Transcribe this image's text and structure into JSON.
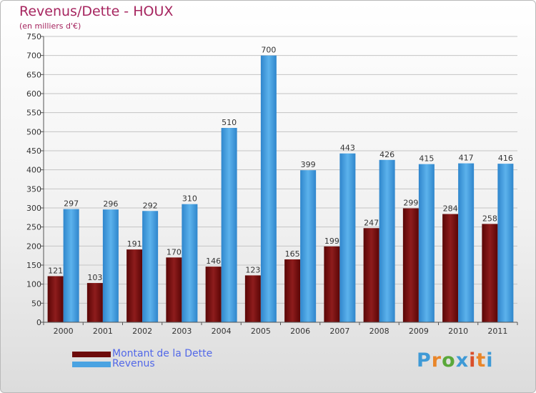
{
  "title": "Revenus/Dette - HOUX",
  "subtitle": "(en milliers d'€)",
  "logo": {
    "text": "Proxiti",
    "colors": [
      "#3f9ad6",
      "#e9862a",
      "#5aa83a",
      "#3f9ad6",
      "#d94f2a",
      "#e9862a",
      "#3f9ad6"
    ]
  },
  "legend": [
    {
      "label": "Montant de la Dette",
      "color": "#6d0a0a"
    },
    {
      "label": "Revenus",
      "color": "#4aa3e2"
    }
  ],
  "chart_data": {
    "type": "bar",
    "title": "Revenus/Dette - HOUX",
    "xlabel": "",
    "ylabel": "",
    "ylim": [
      0,
      750
    ],
    "yticks": [
      0,
      50,
      100,
      150,
      200,
      250,
      300,
      350,
      400,
      450,
      500,
      550,
      600,
      650,
      700,
      750
    ],
    "grid": true,
    "legend_position": "bottom-left",
    "categories": [
      "2000",
      "2001",
      "2002",
      "2003",
      "2004",
      "2005",
      "2006",
      "2007",
      "2008",
      "2009",
      "2010",
      "2011"
    ],
    "series": [
      {
        "name": "Montant de la Dette",
        "color": "#6d0a0a",
        "values": [
          121,
          103,
          191,
          170,
          146,
          123,
          165,
          199,
          247,
          299,
          284,
          258
        ]
      },
      {
        "name": "Revenus",
        "color": "#4aa3e2",
        "values": [
          297,
          296,
          292,
          310,
          510,
          700,
          399,
          443,
          426,
          415,
          417,
          416
        ]
      }
    ]
  }
}
